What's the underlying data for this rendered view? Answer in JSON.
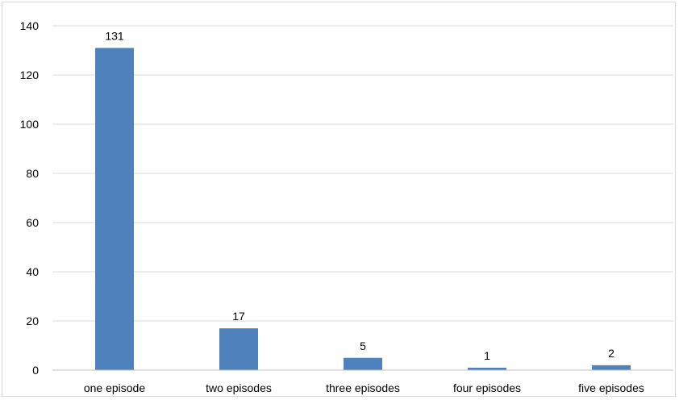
{
  "chart_data": {
    "type": "bar",
    "title": "",
    "xlabel": "",
    "ylabel": "",
    "categories": [
      "one episode",
      "two episodes",
      "three episodes",
      "four episodes",
      "five episodes"
    ],
    "values": [
      131,
      17,
      5,
      1,
      2
    ],
    "data_labels": [
      "131",
      "17",
      "5",
      "1",
      "2"
    ],
    "ylim": [
      0,
      140
    ],
    "yticks": [
      "0",
      "20",
      "40",
      "60",
      "80",
      "100",
      "120",
      "140"
    ],
    "ytick_values": [
      0,
      20,
      40,
      60,
      80,
      100,
      120,
      140
    ],
    "grid": true,
    "legend": "none",
    "bar_color": "#4f81bd",
    "grid_color": "#d9d9d9",
    "axis_color": "#bfbfbf"
  }
}
